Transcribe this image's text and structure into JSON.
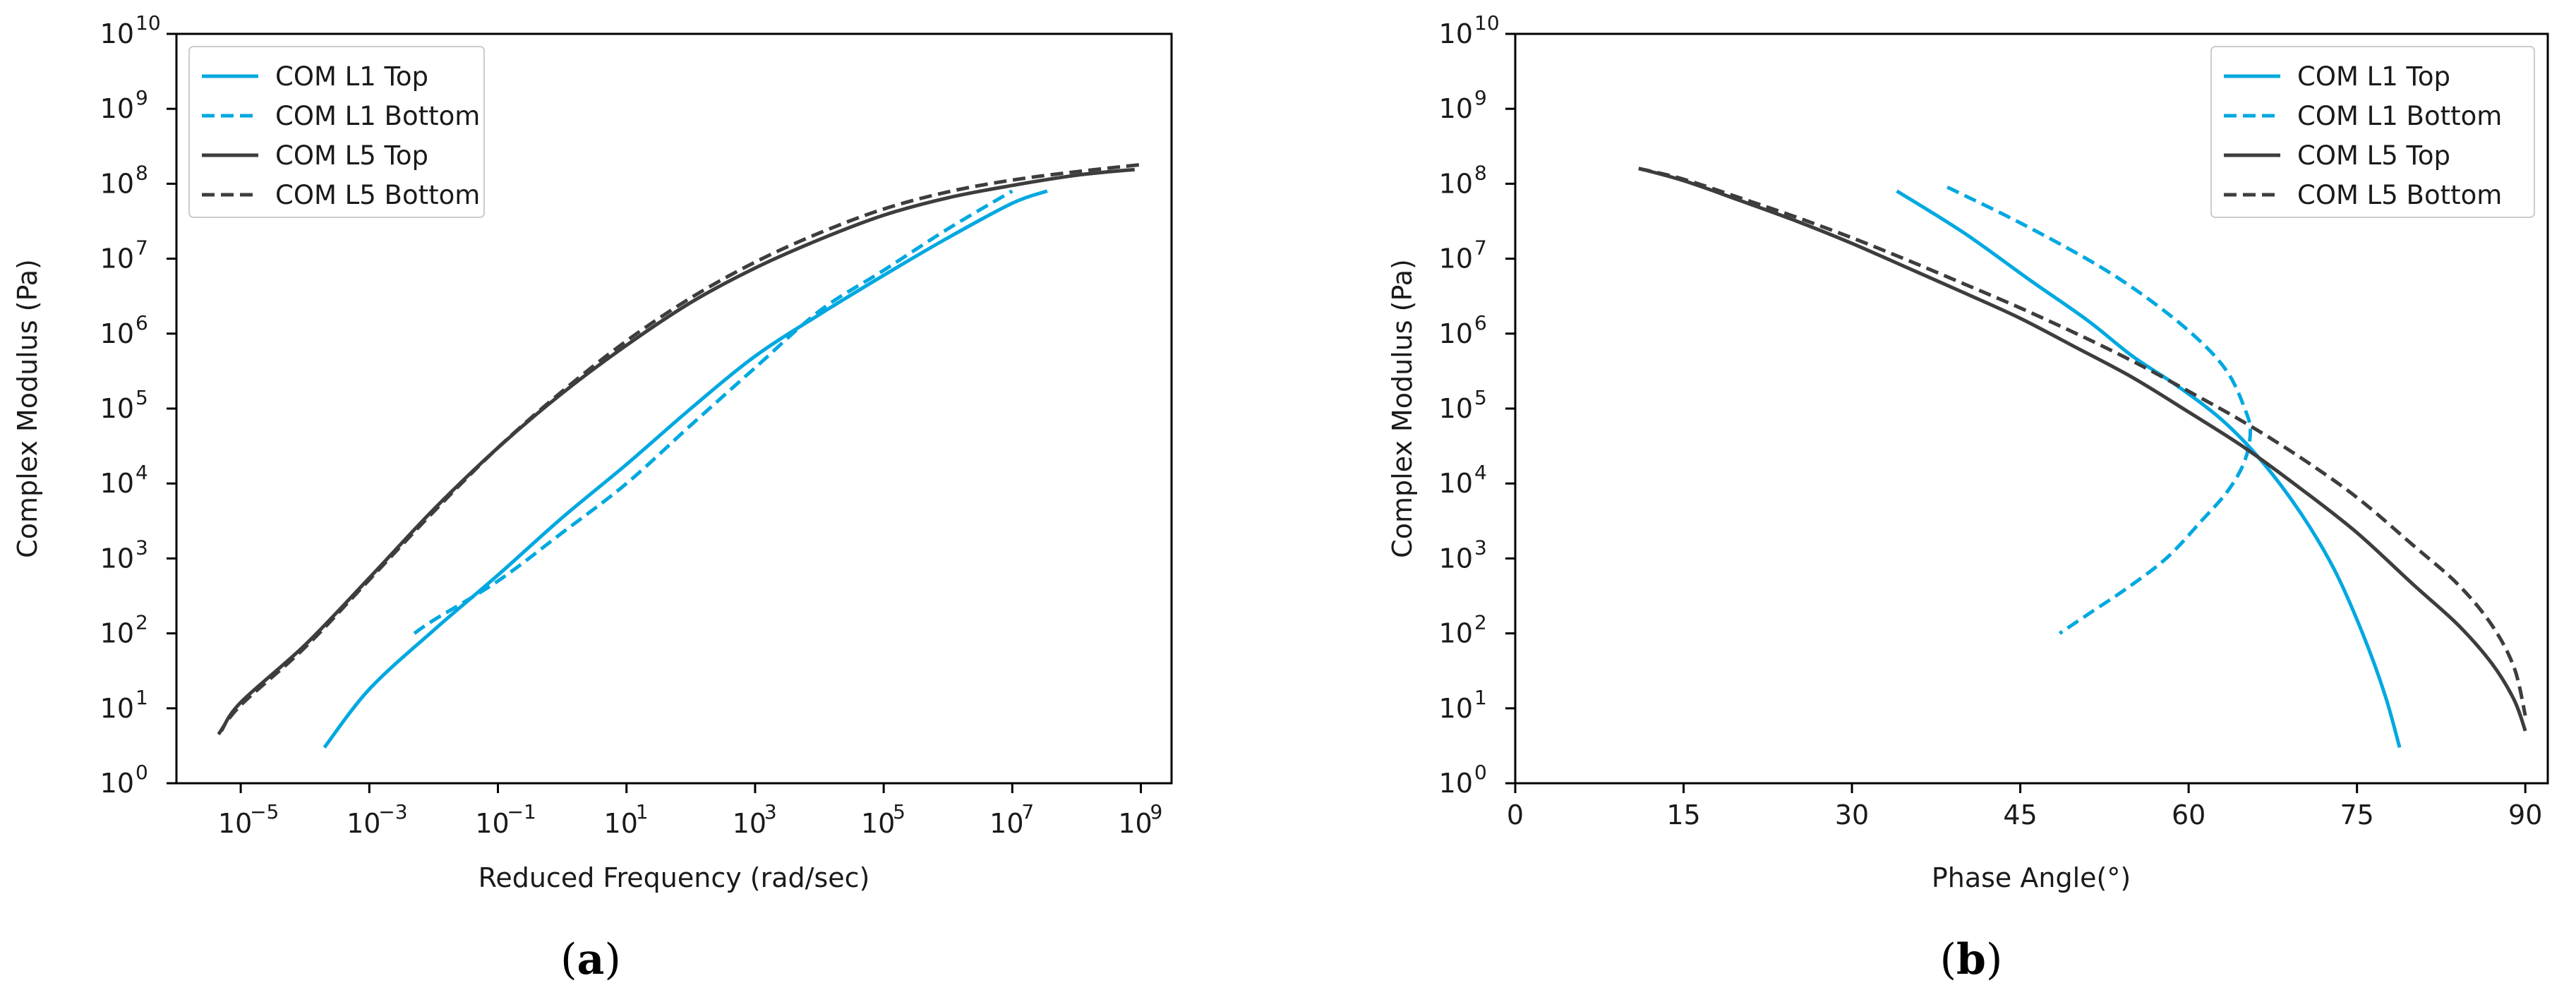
{
  "colors": {
    "l1": "#00a8e0",
    "l5": "#3d3d3d"
  },
  "panels": [
    {
      "letter": "a"
    },
    {
      "letter": "b"
    }
  ],
  "chart_data": [
    {
      "type": "line",
      "xlabel": "Reduced Frequency (rad/sec)",
      "ylabel": "Complex Modulus (Pa)",
      "xscale": "log",
      "yscale": "log",
      "xlim": [
        1e-06,
        3000000000.0
      ],
      "ylim": [
        1,
        10000000000.0
      ],
      "xtick_exponents": [
        "−5",
        "−3",
        "−1",
        "1",
        "3",
        "5",
        "7",
        "9"
      ],
      "xtick_values": [
        1e-05,
        0.001,
        0.1,
        10.0,
        1000.0,
        100000.0,
        10000000.0,
        1000000000.0
      ],
      "ytick_exponents": [
        "0",
        "1",
        "2",
        "3",
        "4",
        "5",
        "6",
        "7",
        "8",
        "9",
        "10"
      ],
      "tick_base": "10",
      "legend_position": "top-left",
      "series": [
        {
          "name": "COM L1 Top",
          "style": "solid",
          "color_key": "l1",
          "x": [
            0.0002,
            0.001,
            0.01,
            0.1,
            1,
            10.0,
            100.0,
            1000.0,
            10000.0,
            100000.0,
            1000000.0,
            10000000.0,
            35000000.0
          ],
          "y": [
            3,
            18,
            110,
            600,
            3500,
            18000.0,
            100000.0,
            500000.0,
            1800000.0,
            6000000.0,
            19000000.0,
            55000000.0,
            80000000.0
          ]
        },
        {
          "name": "COM L1 Bottom",
          "style": "dashed",
          "color_key": "l1",
          "x": [
            0.005,
            0.01,
            0.1,
            1,
            10.0,
            100.0,
            1000.0,
            10000.0,
            100000.0,
            1000000.0,
            10000000.0
          ],
          "y": [
            100,
            150,
            500,
            2200,
            10000.0,
            60000.0,
            350000.0,
            2000000.0,
            7000000.0,
            25000000.0,
            80000000.0
          ]
        },
        {
          "name": "COM L5 Top",
          "style": "solid",
          "color_key": "l5",
          "x": [
            5e-06,
            1e-05,
            0.0001,
            0.001,
            0.01,
            0.1,
            1,
            10.0,
            100.0,
            1000.0,
            10000.0,
            100000.0,
            1000000.0,
            10000000.0,
            100000000.0,
            800000000.0
          ],
          "y": [
            5,
            12,
            70,
            550,
            4500,
            30000.0,
            160000.0,
            700000.0,
            2600000.0,
            7500000.0,
            18000000.0,
            38000000.0,
            65000000.0,
            95000000.0,
            130000000.0,
            155000000.0
          ]
        },
        {
          "name": "COM L5 Bottom",
          "style": "dashed",
          "color_key": "l5",
          "x": [
            4.5e-06,
            1e-05,
            0.0001,
            0.001,
            0.01,
            0.1,
            1,
            10.0,
            100.0,
            1000.0,
            10000.0,
            100000.0,
            1000000.0,
            10000000.0,
            100000000.0,
            1000000000.0
          ],
          "y": [
            4.5,
            11,
            65,
            520,
            4200,
            30000.0,
            170000.0,
            800000.0,
            3000000.0,
            9000000.0,
            22000000.0,
            46000000.0,
            78000000.0,
            112000000.0,
            145000000.0,
            180000000.0
          ]
        }
      ]
    },
    {
      "type": "line",
      "xlabel": "Phase Angle(°)",
      "ylabel": "Complex Modulus (Pa)",
      "xscale": "linear",
      "yscale": "log",
      "xlim": [
        0,
        92
      ],
      "ylim": [
        1,
        10000000000.0
      ],
      "xticks": [
        0,
        15,
        30,
        45,
        60,
        75,
        90
      ],
      "ytick_exponents": [
        "0",
        "1",
        "2",
        "3",
        "4",
        "5",
        "6",
        "7",
        "8",
        "9",
        "10"
      ],
      "tick_base": "10",
      "legend_position": "top-right",
      "series": [
        {
          "name": "COM L1 Top",
          "style": "solid",
          "color_key": "l1",
          "x": [
            34,
            40,
            46,
            51,
            55,
            59,
            63,
            66.5,
            70,
            73,
            75.5,
            77.5,
            78.8
          ],
          "y": [
            80000000.0,
            22000000.0,
            5000000.0,
            1500000.0,
            500000.0,
            200000.0,
            70000.0,
            20000.0,
            4000,
            700,
            100,
            15,
            3
          ]
        },
        {
          "name": "COM L1 Bottom",
          "style": "dashed",
          "color_key": "l1",
          "x": [
            38.5,
            45,
            52,
            57,
            61,
            63.5,
            65,
            65.5,
            65,
            63.5,
            61,
            58,
            54.5,
            51.5,
            48.5
          ],
          "y": [
            90000000.0,
            30000000.0,
            8000000.0,
            2500000.0,
            800000.0,
            300000.0,
            100000.0,
            50000.0,
            20000.0,
            8000,
            3000,
            1000,
            400,
            200,
            100
          ]
        },
        {
          "name": "COM L5 Top",
          "style": "solid",
          "color_key": "l5",
          "x": [
            11,
            15,
            20,
            25,
            30,
            35,
            40,
            45,
            50,
            55,
            60,
            65,
            70,
            75,
            80,
            84,
            87,
            89,
            90
          ],
          "y": [
            160000000.0,
            110000000.0,
            60000000.0,
            32000000.0,
            16000000.0,
            7500000.0,
            3500000.0,
            1600000.0,
            650000.0,
            260000.0,
            90000.0,
            30000.0,
            8500,
            2200,
            450,
            130,
            40,
            13,
            5
          ]
        },
        {
          "name": "COM L5 Bottom",
          "style": "dashed",
          "color_key": "l5",
          "x": [
            11,
            15,
            20,
            25,
            30,
            35,
            40,
            45,
            50,
            55,
            60,
            65,
            70,
            75,
            80,
            84,
            87,
            89,
            90
          ],
          "y": [
            160000000.0,
            115000000.0,
            65000000.0,
            36000000.0,
            19000000.0,
            9500000.0,
            4600000.0,
            2200000.0,
            1000000.0,
            430000.0,
            170000.0,
            65000.0,
            22000.0,
            6500,
            1500,
            450,
            130,
            35,
            8
          ]
        }
      ]
    }
  ]
}
